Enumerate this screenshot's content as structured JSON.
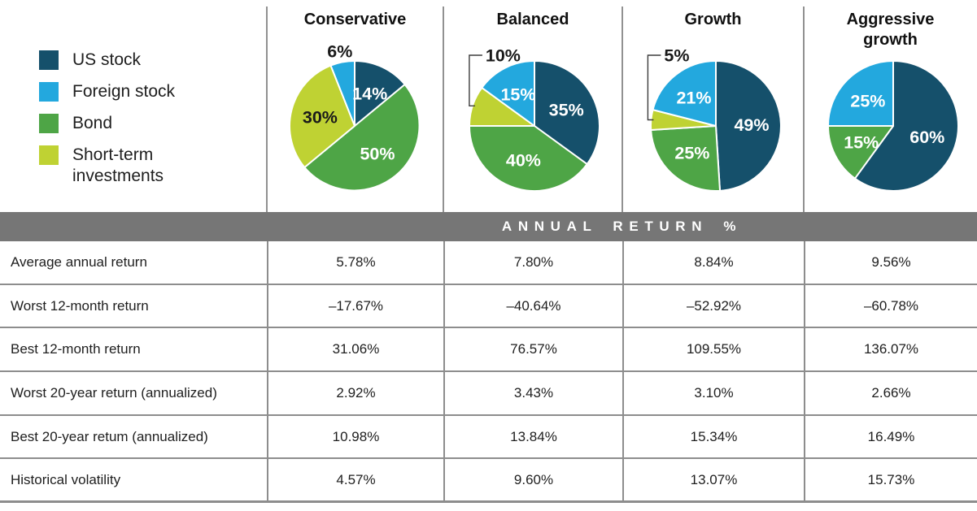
{
  "palette": {
    "us_stock": "#15506B",
    "foreign_stock": "#23A8DE",
    "bond": "#4EA546",
    "short_term_investments": "#BFD233",
    "band_grey": "#767676",
    "border_grey": "#8D8D8D",
    "pie_label_white": "#FFFFFF",
    "pie_label_dark": "#1A1A1A"
  },
  "legend": {
    "items": [
      {
        "label": "US stock",
        "color": "#15506B"
      },
      {
        "label": "Foreign stock",
        "color": "#23A8DE"
      },
      {
        "label": "Bond",
        "color": "#4EA546"
      },
      {
        "label": "Short-term investments",
        "color": "#BFD233"
      }
    ]
  },
  "chart_data": [
    {
      "type": "pie",
      "title": "Conservative",
      "slices": [
        {
          "name": "US stock",
          "value": 14,
          "label": "14%",
          "color": "#15506B",
          "label_placement": "inside",
          "label_color": "#FFFFFF",
          "bracket": false
        },
        {
          "name": "Bond",
          "value": 50,
          "label": "50%",
          "color": "#4EA546",
          "label_placement": "inside",
          "label_color": "#FFFFFF",
          "bracket": false
        },
        {
          "name": "Short-term investments",
          "value": 30,
          "label": "30%",
          "color": "#BFD233",
          "label_placement": "inside",
          "label_color": "#1A1A1A",
          "bracket": false
        },
        {
          "name": "Foreign stock",
          "value": 6,
          "label": "6%",
          "color": "#23A8DE",
          "label_placement": "outside",
          "label_color": "#1A1A1A",
          "bracket": false
        }
      ]
    },
    {
      "type": "pie",
      "title": "Balanced",
      "slices": [
        {
          "name": "US stock",
          "value": 35,
          "label": "35%",
          "color": "#15506B",
          "label_placement": "inside",
          "label_color": "#FFFFFF",
          "bracket": false
        },
        {
          "name": "Bond",
          "value": 40,
          "label": "40%",
          "color": "#4EA546",
          "label_placement": "inside",
          "label_color": "#FFFFFF",
          "bracket": false
        },
        {
          "name": "Short-term investments",
          "value": 10,
          "label": "10%",
          "color": "#BFD233",
          "label_placement": "outside",
          "label_color": "#1A1A1A",
          "bracket": true
        },
        {
          "name": "Foreign stock",
          "value": 15,
          "label": "15%",
          "color": "#23A8DE",
          "label_placement": "inside",
          "label_color": "#FFFFFF",
          "bracket": false
        }
      ]
    },
    {
      "type": "pie",
      "title": "Growth",
      "slices": [
        {
          "name": "US stock",
          "value": 49,
          "label": "49%",
          "color": "#15506B",
          "label_placement": "inside",
          "label_color": "#FFFFFF",
          "bracket": false
        },
        {
          "name": "Bond",
          "value": 25,
          "label": "25%",
          "color": "#4EA546",
          "label_placement": "inside",
          "label_color": "#FFFFFF",
          "bracket": false
        },
        {
          "name": "Short-term investments",
          "value": 5,
          "label": "5%",
          "color": "#BFD233",
          "label_placement": "outside",
          "label_color": "#1A1A1A",
          "bracket": true
        },
        {
          "name": "Foreign stock",
          "value": 21,
          "label": "21%",
          "color": "#23A8DE",
          "label_placement": "inside",
          "label_color": "#FFFFFF",
          "bracket": false
        }
      ]
    },
    {
      "type": "pie",
      "title": "Aggressive growth",
      "slices": [
        {
          "name": "US stock",
          "value": 60,
          "label": "60%",
          "color": "#15506B",
          "label_placement": "inside",
          "label_color": "#FFFFFF",
          "bracket": false
        },
        {
          "name": "Bond",
          "value": 15,
          "label": "15%",
          "color": "#4EA546",
          "label_placement": "inside",
          "label_color": "#FFFFFF",
          "bracket": false
        },
        {
          "name": "Foreign stock",
          "value": 25,
          "label": "25%",
          "color": "#23A8DE",
          "label_placement": "inside",
          "label_color": "#FFFFFF",
          "bracket": false
        }
      ]
    }
  ],
  "table": {
    "header": "ANNUAL RETURN %",
    "columns": [
      "Conservative",
      "Balanced",
      "Growth",
      "Aggressive growth"
    ],
    "rows": [
      {
        "label": "Average annual return",
        "values": [
          "5.78%",
          "7.80%",
          "8.84%",
          "9.56%"
        ]
      },
      {
        "label": "Worst 12-month return",
        "values": [
          "–17.67%",
          "–40.64%",
          "–52.92%",
          "–60.78%"
        ]
      },
      {
        "label": "Best 12-month return",
        "values": [
          "31.06%",
          "76.57%",
          "109.55%",
          "136.07%"
        ]
      },
      {
        "label": "Worst 20-year return (annualized)",
        "values": [
          "2.92%",
          "3.43%",
          "3.10%",
          "2.66%"
        ]
      },
      {
        "label": "Best 20-year retum (annualized)",
        "values": [
          "10.98%",
          "13.84%",
          "15.34%",
          "16.49%"
        ]
      },
      {
        "label": "Historical volatility",
        "values": [
          "4.57%",
          "9.60%",
          "13.07%",
          "15.73%"
        ]
      }
    ]
  }
}
